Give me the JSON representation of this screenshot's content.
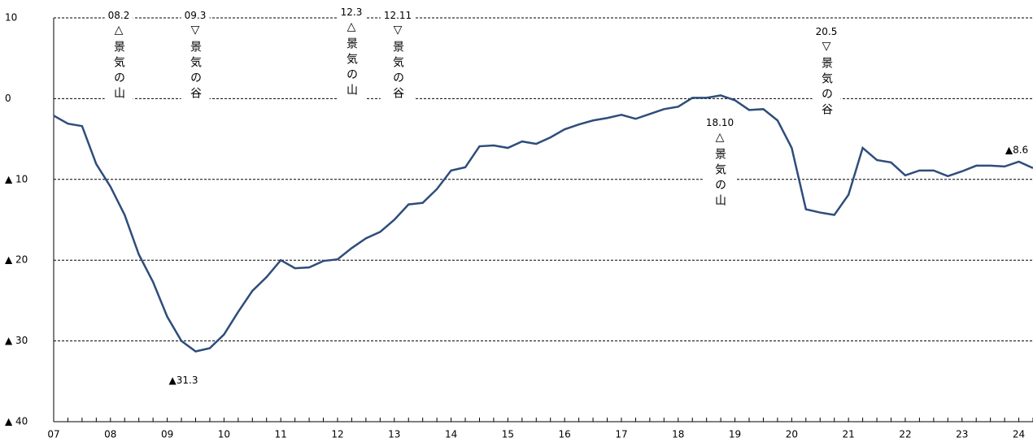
{
  "chart_data": {
    "type": "line",
    "categories": [
      "07",
      null,
      null,
      null,
      "08",
      null,
      null,
      null,
      "09",
      null,
      null,
      null,
      "10",
      null,
      null,
      null,
      "11",
      null,
      null,
      null,
      "12",
      null,
      null,
      null,
      "13",
      null,
      null,
      null,
      "14",
      null,
      null,
      null,
      "15",
      null,
      null,
      null,
      "16",
      null,
      null,
      null,
      "17",
      null,
      null,
      null,
      "18",
      null,
      null,
      null,
      "19",
      null,
      null,
      null,
      "20",
      null,
      null,
      null,
      "21",
      null,
      null,
      null,
      "22",
      null,
      null,
      null,
      "23",
      null,
      null,
      null,
      "24",
      null
    ],
    "series": [
      {
        "color": "#2e4d7b",
        "values": [
          -2.1,
          -3.1,
          -3.4,
          -8.1,
          -10.9,
          -14.4,
          -19.3,
          -22.7,
          -27,
          -30,
          -31.3,
          -30.9,
          -29.2,
          -26.4,
          -23.8,
          -22.1,
          -20,
          -21,
          -20.9,
          -20.1,
          -19.9,
          -18.5,
          -17.3,
          -16.5,
          -15,
          -13.1,
          -12.9,
          -11.2,
          -8.9,
          -8.5,
          -5.9,
          -5.8,
          -6.1,
          -5.3,
          -5.6,
          -4.8,
          -3.8,
          -3.2,
          -2.7,
          -2.4,
          -2,
          -2.5,
          -1.9,
          -1.3,
          -1,
          0.1,
          0.1,
          0.4,
          -0.2,
          -1.4,
          -1.3,
          -2.7,
          -6.1,
          -13.7,
          -14.1,
          -14.4,
          -11.9,
          -6.1,
          -7.6,
          -7.9,
          -9.5,
          -8.9,
          -8.9,
          -9.6,
          -9,
          -8.3,
          -8.3,
          -8.4,
          -7.8,
          -8.6
        ],
        "value_labels": [
          null,
          null,
          null,
          null,
          null,
          null,
          null,
          null,
          null,
          null,
          "▲31.3",
          null,
          null,
          null,
          null,
          null,
          null,
          null,
          null,
          null,
          null,
          null,
          null,
          null,
          null,
          null,
          null,
          null,
          null,
          null,
          null,
          null,
          null,
          null,
          null,
          null,
          null,
          null,
          null,
          null,
          null,
          null,
          null,
          null,
          null,
          null,
          null,
          null,
          null,
          null,
          null,
          null,
          null,
          null,
          null,
          null,
          null,
          null,
          null,
          null,
          null,
          null,
          null,
          null,
          null,
          null,
          null,
          null,
          null,
          "▲8.6"
        ]
      }
    ],
    "ylim": [
      -40,
      10
    ],
    "yticks": [
      10,
      0,
      {
        "value": -10,
        "label": "▲ 10"
      },
      {
        "value": -20,
        "label": "▲ 20"
      },
      {
        "value": -30,
        "label": "▲ 30"
      },
      {
        "value": -40,
        "label": "▲ 40"
      }
    ],
    "grid": true,
    "annotations": [
      {
        "date": "08.2",
        "text": "△景気の山"
      },
      {
        "date": "09.3",
        "text": "▽景気の谷"
      },
      {
        "date": "12.3",
        "text": "△景気の山"
      },
      {
        "date": "12.11",
        "text": "▽景気の谷"
      },
      {
        "date": "18.10",
        "text": "△景気の山"
      },
      {
        "date": "20.5",
        "text": "▽景気の谷"
      }
    ]
  }
}
